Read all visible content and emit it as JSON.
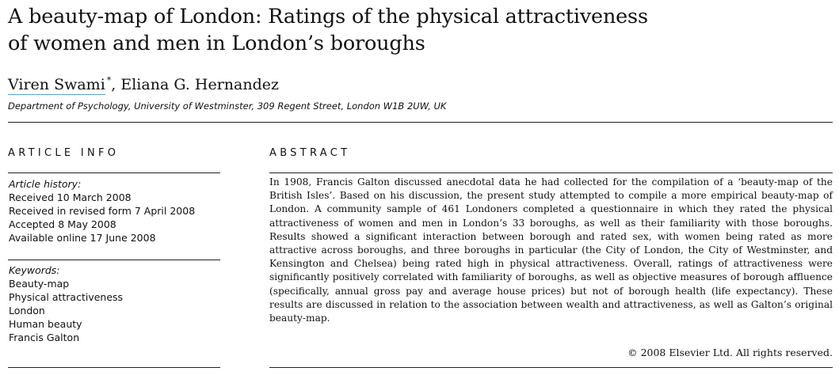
{
  "title": {
    "line1": "A beauty-map of London: Ratings of the physical attractiveness",
    "line2": "of women and men in London’s boroughs"
  },
  "authors": {
    "first": "Viren Swami",
    "marker": "*",
    "rest": ", Eliana G. Hernandez"
  },
  "affiliation": "Department of Psychology, University of Westminster, 309 Regent Street, London W1B 2UW, UK",
  "article_info": {
    "heading": "ARTICLE INFO",
    "history_label": "Article history:",
    "history": [
      "Received 10 March 2008",
      "Received in revised form 7 April 2008",
      "Accepted 8 May 2008",
      "Available online 17 June 2008"
    ],
    "keywords_label": "Keywords:",
    "keywords": [
      "Beauty-map",
      "Physical attractiveness",
      "London",
      "Human beauty",
      "Francis Galton"
    ]
  },
  "abstract": {
    "heading": "ABSTRACT",
    "text": "In 1908, Francis Galton discussed anecdotal data he had collected for the compilation of a ‘beauty-map of the British Isles’. Based on his discussion, the present study attempted to compile a more empirical beauty-map of London. A community sample of 461 Londoners completed a questionnaire in which they rated the physical attractiveness of women and men in London’s 33 boroughs, as well as their familiarity with those boroughs. Results showed a significant interaction between borough and rated sex, with women being rated as more attractive across boroughs, and three boroughs in particular (the City of Lon­don, the City of Westminster, and Kensington and Chelsea) being rated high in physical attractiveness. Overall, ratings of attractiveness were significantly positively correlated with familiarity of boroughs, as well as objective measures of borough affluence (specifically, annual gross pay and average house prices) but not of borough health (life expectancy). These results are discussed in relation to the associ­ation between wealth and attractiveness, as well as Galton’s original beauty-map.",
    "copyright": "© 2008 Elsevier Ltd. All rights reserved."
  }
}
